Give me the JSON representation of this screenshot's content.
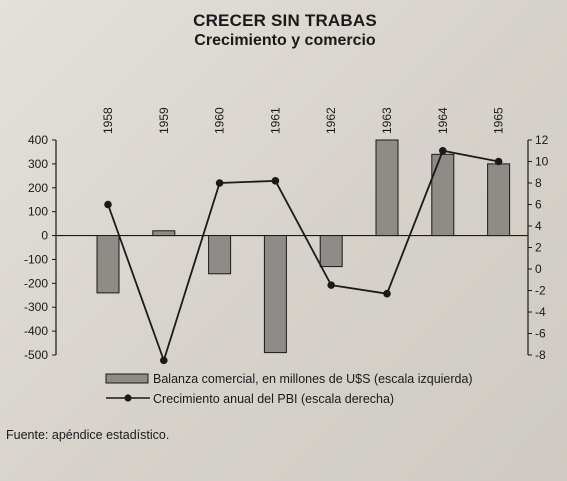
{
  "title": "CRECER SIN TRABAS",
  "subtitle": "Crecimiento y comercio",
  "source": "Fuente: apéndice estadístico.",
  "chart_data": {
    "type": "bar+line",
    "categories": [
      "1958",
      "1959",
      "1960",
      "1961",
      "1962",
      "1963",
      "1964",
      "1965"
    ],
    "series": [
      {
        "name": "Balanza comercial, en millones de U$S (escala izquierda)",
        "type": "bar",
        "axis": "left",
        "values": [
          -240,
          20,
          -160,
          -490,
          -130,
          400,
          340,
          300
        ]
      },
      {
        "name": "Crecimiento anual del PBI (escala derecha)",
        "type": "line",
        "axis": "right",
        "values": [
          6,
          -8.5,
          8,
          8.2,
          -1.5,
          -2.3,
          11,
          10
        ]
      }
    ],
    "left_axis": {
      "min": -500,
      "max": 400,
      "ticks": [
        400,
        300,
        200,
        100,
        0,
        -100,
        -200,
        -300,
        -400,
        -500
      ]
    },
    "right_axis": {
      "min": -8,
      "max": 12,
      "ticks": [
        12,
        10,
        8,
        6,
        4,
        2,
        0,
        -2,
        -4,
        -6,
        -8
      ]
    },
    "grid": false,
    "legend_placement": "bottom",
    "colors": {
      "bar_fill": "#8f8b86",
      "bar_stroke": "#1a1a1a",
      "line": "#1a1a1a"
    }
  }
}
